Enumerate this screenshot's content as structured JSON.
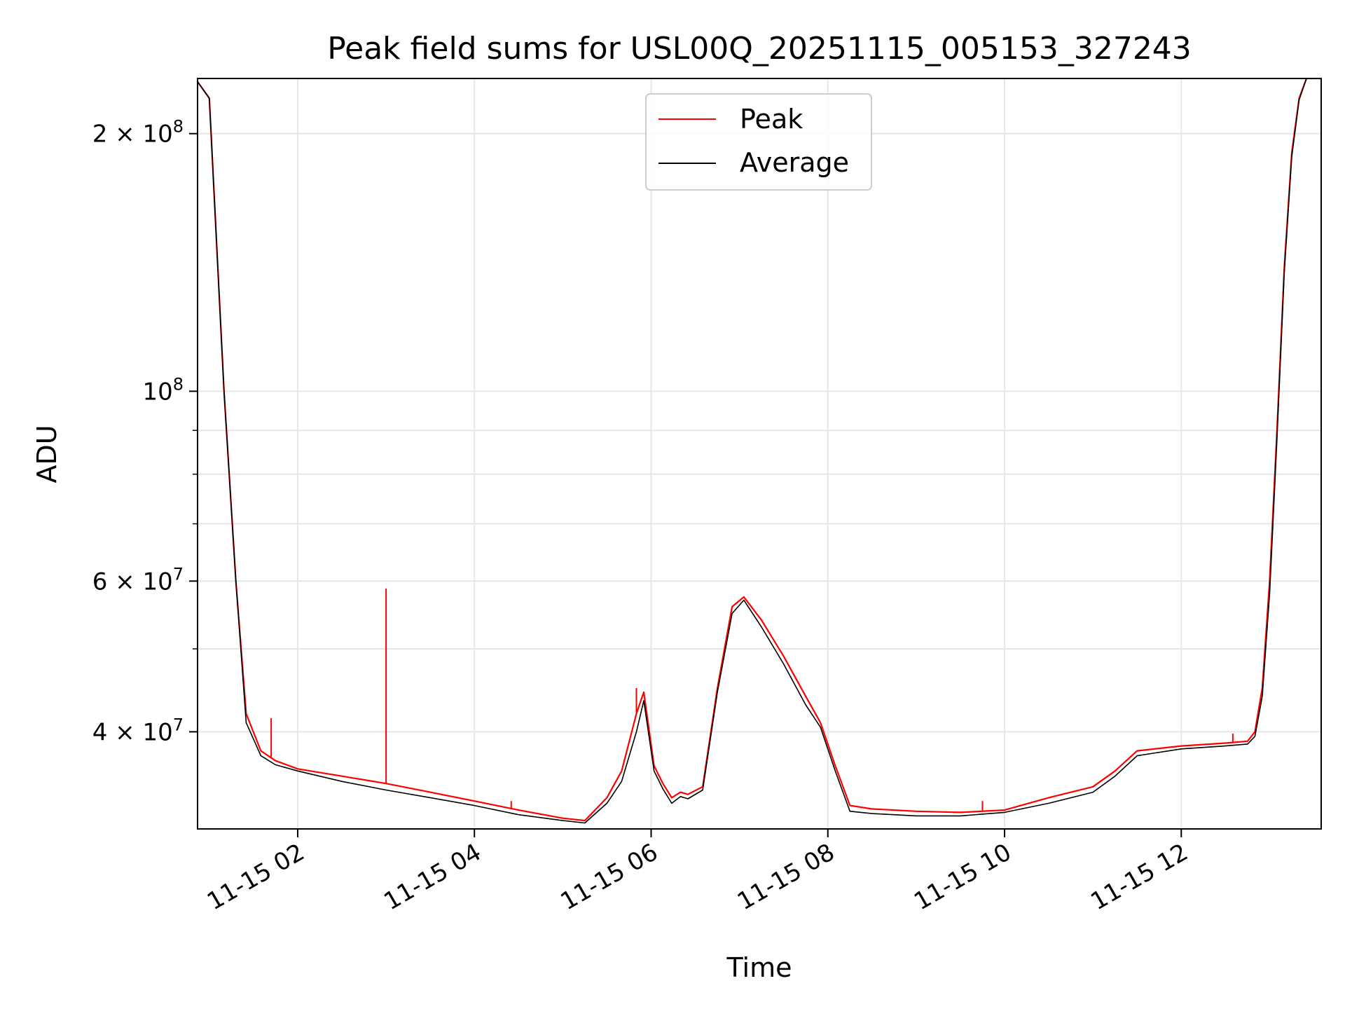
{
  "chart_data": {
    "type": "line",
    "title": "Peak field sums for USL00Q_20251115_005153_327243",
    "xlabel": "Time",
    "ylabel": "ADU",
    "y_scale": "log",
    "x_range": [
      "2025-11-15 00:52",
      "2025-11-15 13:35"
    ],
    "ylim": [
      30800000,
      232000000
    ],
    "grid": true,
    "legend_position": "upper center",
    "x_ticks": [
      {
        "value": "2025-11-15 02:00",
        "label": "11-15 02"
      },
      {
        "value": "2025-11-15 04:00",
        "label": "11-15 04"
      },
      {
        "value": "2025-11-15 06:00",
        "label": "11-15 06"
      },
      {
        "value": "2025-11-15 08:00",
        "label": "11-15 08"
      },
      {
        "value": "2025-11-15 10:00",
        "label": "11-15 10"
      },
      {
        "value": "2025-11-15 12:00",
        "label": "11-15 12"
      }
    ],
    "y_ticks": [
      {
        "value": 200000000,
        "base": "2 × 10",
        "exp": "8"
      },
      {
        "value": 100000000,
        "base": "10",
        "exp": "8"
      },
      {
        "value": 60000000,
        "base": "6 × 10",
        "exp": "7"
      },
      {
        "value": 40000000,
        "base": "4 × 10",
        "exp": "7"
      }
    ],
    "y_minor_ticks": [
      90000000,
      80000000,
      70000000,
      50000000,
      30000000
    ],
    "series": [
      {
        "name": "Peak",
        "color": "#ff0000",
        "x": [
          "2025-11-15 00:52",
          "2025-11-15 01:00",
          "2025-11-15 01:10",
          "2025-11-15 01:18",
          "2025-11-15 01:25",
          "2025-11-15 01:35",
          "2025-11-15 01:45",
          "2025-11-15 02:00",
          "2025-11-15 02:30",
          "2025-11-15 03:00",
          "2025-11-15 03:30",
          "2025-11-15 04:00",
          "2025-11-15 04:30",
          "2025-11-15 05:00",
          "2025-11-15 05:15",
          "2025-11-15 05:30",
          "2025-11-15 05:40",
          "2025-11-15 05:50",
          "2025-11-15 05:55",
          "2025-11-15 06:02",
          "2025-11-15 06:08",
          "2025-11-15 06:14",
          "2025-11-15 06:20",
          "2025-11-15 06:25",
          "2025-11-15 06:35",
          "2025-11-15 06:45",
          "2025-11-15 06:55",
          "2025-11-15 07:03",
          "2025-11-15 07:15",
          "2025-11-15 07:30",
          "2025-11-15 07:45",
          "2025-11-15 07:55",
          "2025-11-15 08:05",
          "2025-11-15 08:15",
          "2025-11-15 08:30",
          "2025-11-15 08:45",
          "2025-11-15 09:00",
          "2025-11-15 09:30",
          "2025-11-15 10:00",
          "2025-11-15 10:30",
          "2025-11-15 11:00",
          "2025-11-15 11:15",
          "2025-11-15 11:30",
          "2025-11-15 12:00",
          "2025-11-15 12:30",
          "2025-11-15 12:45",
          "2025-11-15 12:50",
          "2025-11-15 12:55",
          "2025-11-15 13:00",
          "2025-11-15 13:05",
          "2025-11-15 13:10",
          "2025-11-15 13:15",
          "2025-11-15 13:20",
          "2025-11-15 13:25",
          "2025-11-15 13:35"
        ],
        "y": [
          230000000,
          220000000,
          100000000,
          60000000,
          42000000,
          38000000,
          37000000,
          36200000,
          35500000,
          34800000,
          34000000,
          33200000,
          32400000,
          31700000,
          31500000,
          33500000,
          36000000,
          42000000,
          44500000,
          36500000,
          34800000,
          33500000,
          34000000,
          33800000,
          34500000,
          45000000,
          56000000,
          57500000,
          54000000,
          49000000,
          44000000,
          41000000,
          36500000,
          32800000,
          32500000,
          32400000,
          32300000,
          32200000,
          32400000,
          33500000,
          34500000,
          36000000,
          38000000,
          38500000,
          38800000,
          39000000,
          40000000,
          45000000,
          60000000,
          90000000,
          140000000,
          190000000,
          220000000,
          232000000,
          232000000
        ]
      },
      {
        "name": "Average",
        "color": "#000000",
        "x": [
          "2025-11-15 00:52",
          "2025-11-15 01:00",
          "2025-11-15 01:10",
          "2025-11-15 01:18",
          "2025-11-15 01:25",
          "2025-11-15 01:35",
          "2025-11-15 01:45",
          "2025-11-15 02:00",
          "2025-11-15 02:30",
          "2025-11-15 03:00",
          "2025-11-15 03:30",
          "2025-11-15 04:00",
          "2025-11-15 04:30",
          "2025-11-15 05:00",
          "2025-11-15 05:15",
          "2025-11-15 05:30",
          "2025-11-15 05:40",
          "2025-11-15 05:50",
          "2025-11-15 05:55",
          "2025-11-15 06:02",
          "2025-11-15 06:08",
          "2025-11-15 06:14",
          "2025-11-15 06:20",
          "2025-11-15 06:25",
          "2025-11-15 06:35",
          "2025-11-15 06:45",
          "2025-11-15 06:55",
          "2025-11-15 07:03",
          "2025-11-15 07:15",
          "2025-11-15 07:30",
          "2025-11-15 07:45",
          "2025-11-15 07:55",
          "2025-11-15 08:05",
          "2025-11-15 08:15",
          "2025-11-15 08:30",
          "2025-11-15 08:45",
          "2025-11-15 09:00",
          "2025-11-15 09:30",
          "2025-11-15 10:00",
          "2025-11-15 10:30",
          "2025-11-15 11:00",
          "2025-11-15 11:15",
          "2025-11-15 11:30",
          "2025-11-15 12:00",
          "2025-11-15 12:30",
          "2025-11-15 12:45",
          "2025-11-15 12:50",
          "2025-11-15 12:55",
          "2025-11-15 13:00",
          "2025-11-15 13:05",
          "2025-11-15 13:10",
          "2025-11-15 13:15",
          "2025-11-15 13:20",
          "2025-11-15 13:25",
          "2025-11-15 13:35"
        ],
        "y": [
          230000000,
          220000000,
          100000000,
          60000000,
          41000000,
          37500000,
          36600000,
          36000000,
          35000000,
          34200000,
          33500000,
          32800000,
          32000000,
          31500000,
          31300000,
          33000000,
          35000000,
          40000000,
          43500000,
          36000000,
          34300000,
          33000000,
          33600000,
          33400000,
          34200000,
          44500000,
          55000000,
          57000000,
          53000000,
          48000000,
          43000000,
          40500000,
          36000000,
          32300000,
          32100000,
          32000000,
          31900000,
          31900000,
          32200000,
          33000000,
          34000000,
          35500000,
          37500000,
          38200000,
          38500000,
          38700000,
          39500000,
          44000000,
          58000000,
          88000000,
          138000000,
          188000000,
          219000000,
          232000000,
          232000000
        ]
      }
    ],
    "peak_spikes": [
      {
        "x": "2025-11-15 01:42",
        "y": 41500000
      },
      {
        "x": "2025-11-15 03:00",
        "y": 58800000
      },
      {
        "x": "2025-11-15 04:25",
        "y": 33200000
      },
      {
        "x": "2025-11-15 05:50",
        "y": 45000000
      },
      {
        "x": "2025-11-15 09:45",
        "y": 33200000
      },
      {
        "x": "2025-11-15 12:35",
        "y": 39800000
      }
    ]
  }
}
